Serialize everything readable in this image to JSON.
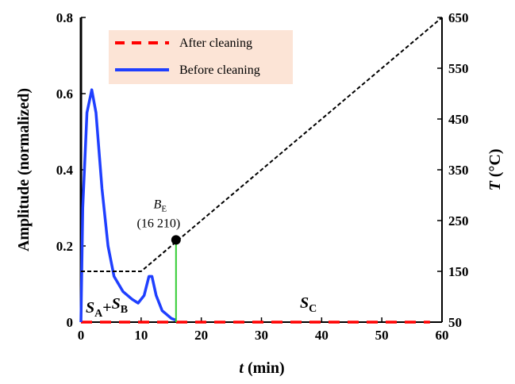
{
  "chart_data": {
    "type": "line",
    "y_label": "Amplitude (normalized)",
    "x_label": [
      "t",
      " (min)"
    ],
    "y2_label": [
      "T",
      " (°C)"
    ],
    "xlim": [
      0,
      60
    ],
    "xticks": [
      0,
      10,
      20,
      30,
      40,
      50,
      60
    ],
    "ylim": [
      0,
      0.8
    ],
    "yticks": [
      0,
      0.2,
      0.4,
      0.6,
      0.8
    ],
    "y2lim": [
      50,
      650
    ],
    "y2ticks": [
      50,
      150,
      250,
      350,
      450,
      550,
      650
    ],
    "legend": "upper left",
    "legend_color": "#fce4d6",
    "series": [
      {
        "name": "After cleaning",
        "color": "#ff0000",
        "style": "dashed",
        "x": [
          0,
          58
        ],
        "values": [
          0,
          0
        ]
      },
      {
        "name": "Before cleaning",
        "color": "#1f3fff",
        "style": "solid",
        "x": [
          0,
          0.3,
          1,
          1.8,
          2.5,
          3.5,
          4.5,
          5.5,
          7,
          8.5,
          9.5,
          10.5,
          11.3,
          11.8,
          12.5,
          13.5,
          15,
          15.8
        ],
        "values": [
          0,
          0.3,
          0.55,
          0.61,
          0.55,
          0.35,
          0.2,
          0.12,
          0.08,
          0.06,
          0.05,
          0.07,
          0.12,
          0.12,
          0.07,
          0.03,
          0.01,
          0.005
        ]
      },
      {
        "color": "#000000",
        "style": "dotted",
        "axis": "y2",
        "x": [
          0,
          10,
          60
        ],
        "values": [
          150,
          150,
          650
        ]
      }
    ],
    "marker": {
      "x": 15.8,
      "y2": 212,
      "line_color": "#33cc33",
      "label": [
        "B",
        "E"
      ],
      "coords": "(16 210)"
    },
    "region_labels": [
      [
        "S",
        "A",
        "+",
        "S",
        "B"
      ],
      [
        "S",
        "C"
      ]
    ]
  }
}
